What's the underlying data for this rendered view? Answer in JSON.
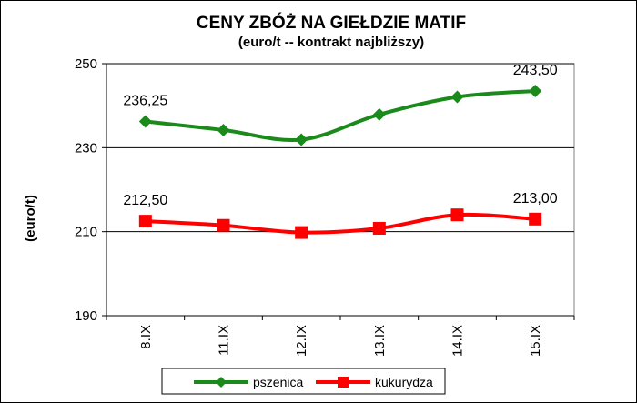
{
  "chart_data": {
    "type": "line",
    "title": "CENY ZBÓŻ NA GIEŁDZIE MATIF",
    "subtitle": "(euro/t -- kontrakt najbliższy)",
    "ylabel": "(euro/t)",
    "xlabel": "",
    "categories": [
      "8.IX",
      "11.IX",
      "12.IX",
      "13.IX",
      "14.IX",
      "15.IX"
    ],
    "ylim": [
      190,
      250
    ],
    "yticks": [
      "190",
      "210",
      "230",
      "250"
    ],
    "grid": true,
    "legend_position": "bottom",
    "series": [
      {
        "name": "pszenica",
        "color": "#1a8a1a",
        "marker": "diamond",
        "values": [
          236.25,
          234.2,
          231.9,
          237.9,
          242.1,
          243.5
        ],
        "labels": [
          {
            "index": 0,
            "text": "236,25"
          },
          {
            "index": 5,
            "text": "243,50"
          }
        ]
      },
      {
        "name": "kukurydza",
        "color": "#ff0000",
        "marker": "square",
        "values": [
          212.5,
          211.5,
          209.8,
          210.8,
          214.0,
          213.0
        ],
        "labels": [
          {
            "index": 0,
            "text": "212,50"
          },
          {
            "index": 5,
            "text": "213,00"
          }
        ]
      }
    ]
  }
}
